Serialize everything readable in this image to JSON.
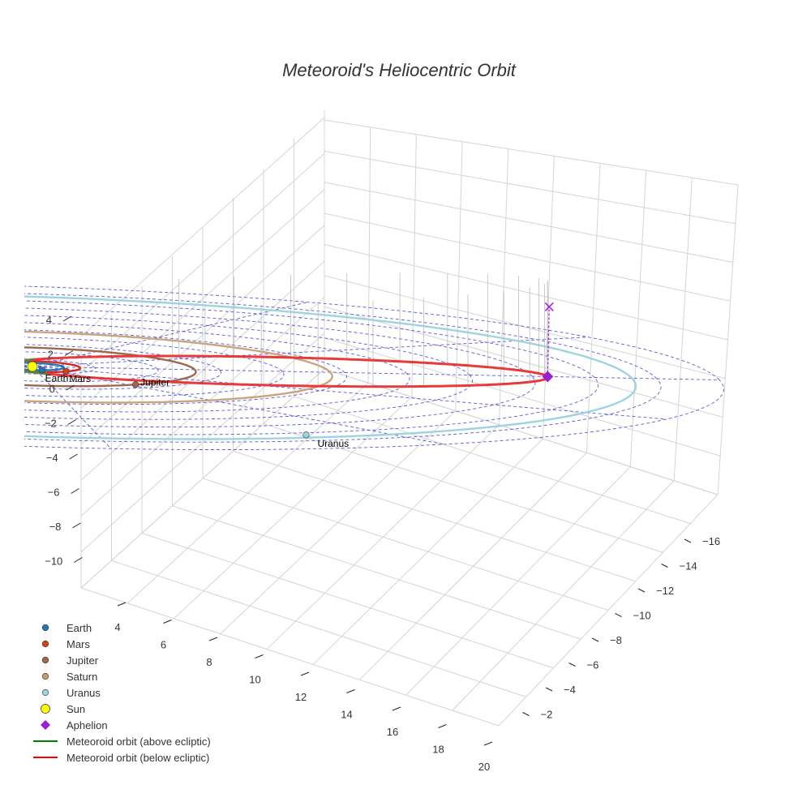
{
  "chart_data": {
    "type": "scatter",
    "title": "Meteoroid's Heliocentric Orbit",
    "projection": "3d",
    "z_ticks": [
      "4",
      "2",
      "0",
      "−2",
      "−4",
      "−6",
      "−8",
      "−10"
    ],
    "x_ticks": [
      "4",
      "6",
      "8",
      "10",
      "12",
      "14",
      "16",
      "18",
      "20"
    ],
    "y_ticks": [
      "−16",
      "−14",
      "−12",
      "−10",
      "−8",
      "−6",
      "−4",
      "−2"
    ],
    "grid": true,
    "legend_position": "bottom-left",
    "orbits": [
      {
        "name": "Earth",
        "a": 1.0,
        "color": "#1f77b4"
      },
      {
        "name": "Mars",
        "a": 1.52,
        "color": "#d62728"
      },
      {
        "name": "Jupiter",
        "a": 5.2,
        "color": "#a0674f"
      },
      {
        "name": "Saturn",
        "a": 9.54,
        "color": "#c9a57f"
      },
      {
        "name": "Uranus",
        "a": 19.2,
        "color": "#9fd3e0"
      }
    ],
    "ecliptic_rings": [
      2,
      4,
      6,
      8,
      10,
      12,
      14,
      16,
      18,
      20,
      22
    ],
    "meteoroid_orbit": {
      "perihelion": 0.9,
      "aphelion": 16.5,
      "above_color": "#2ca02c",
      "below_color": "#e83a3a"
    },
    "aphelion_point": {
      "label": "Aphelion",
      "color": "#9b1dd6"
    },
    "sun": {
      "label": "Sun",
      "color": "#ffff00"
    },
    "point_labels": [
      {
        "text": "Earth"
      },
      {
        "text": "Mars"
      },
      {
        "text": "Jupiter"
      },
      {
        "text": "Uranus"
      }
    ],
    "legend": [
      {
        "label": "Earth",
        "kind": "dot",
        "color": "#1f77b4"
      },
      {
        "label": "Mars",
        "kind": "dot",
        "color": "#d0421b"
      },
      {
        "label": "Jupiter",
        "kind": "dot",
        "color": "#a0674f"
      },
      {
        "label": "Saturn",
        "kind": "dot",
        "color": "#c49a6c"
      },
      {
        "label": "Uranus",
        "kind": "dot",
        "color": "#9fd3e0"
      },
      {
        "label": "Sun",
        "kind": "bigdot",
        "color": "#ffff00"
      },
      {
        "label": "Aphelion",
        "kind": "diamond",
        "color": "#9b1dd6"
      },
      {
        "label": "Meteoroid orbit (above ecliptic)",
        "kind": "line",
        "color": "#008000"
      },
      {
        "label": "Meteoroid orbit (below ecliptic)",
        "kind": "line",
        "color": "#ff0000"
      }
    ]
  }
}
